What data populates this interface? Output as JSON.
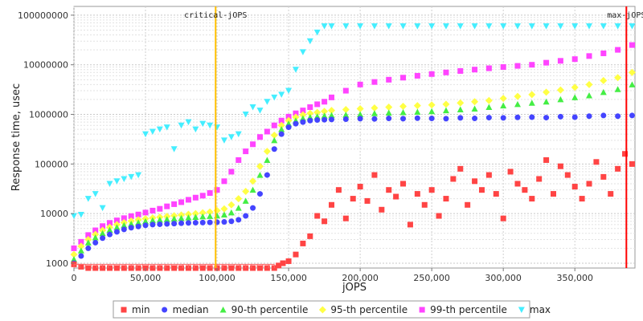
{
  "chart_data": {
    "type": "scatter",
    "title": "",
    "xlabel": "jOPS",
    "ylabel": "Response time, usec",
    "x_scale": "linear",
    "y_scale": "log",
    "xlim": [
      0,
      392000
    ],
    "ylim": [
      800,
      150000000
    ],
    "x_ticks": [
      0,
      50000,
      100000,
      150000,
      200000,
      250000,
      300000,
      350000
    ],
    "x_tick_labels": [
      "0",
      "50,000",
      "100,000",
      "150,000",
      "200,000",
      "250,000",
      "300,000",
      "350,000"
    ],
    "y_ticks": [
      1000,
      10000,
      100000,
      1000000,
      10000000,
      100000000
    ],
    "y_tick_labels": [
      "1000",
      "10000",
      "100000",
      "1000000",
      "10000000",
      "100000000"
    ],
    "grid": true,
    "legend_position": "bottom",
    "markers": [
      {
        "label": "critical-jOPS",
        "x": 99000,
        "color": "#ffbf00"
      },
      {
        "label": "max-jOPS",
        "x": 386000,
        "color": "#ff0000"
      }
    ],
    "series": [
      {
        "name": "min",
        "color": "#ff4444",
        "shape": "square",
        "x": [
          0,
          5000,
          10000,
          15000,
          20000,
          25000,
          30000,
          35000,
          40000,
          45000,
          50000,
          55000,
          60000,
          65000,
          70000,
          75000,
          80000,
          85000,
          90000,
          95000,
          100000,
          105000,
          110000,
          115000,
          120000,
          125000,
          130000,
          135000,
          140000,
          143000,
          146000,
          150000,
          155000,
          160000,
          165000,
          170000,
          175000,
          180000,
          185000,
          190000,
          195000,
          200000,
          205000,
          210000,
          215000,
          220000,
          225000,
          230000,
          235000,
          240000,
          245000,
          250000,
          255000,
          260000,
          265000,
          270000,
          275000,
          280000,
          285000,
          290000,
          295000,
          300000,
          305000,
          310000,
          315000,
          320000,
          325000,
          330000,
          335000,
          340000,
          345000,
          350000,
          355000,
          360000,
          365000,
          370000,
          375000,
          380000,
          385000,
          390000
        ],
        "y": [
          950,
          850,
          800,
          800,
          800,
          800,
          800,
          800,
          800,
          800,
          800,
          800,
          800,
          800,
          800,
          800,
          800,
          800,
          800,
          800,
          800,
          800,
          800,
          800,
          800,
          800,
          800,
          800,
          800,
          900,
          1000,
          1100,
          1500,
          2500,
          3500,
          9000,
          7000,
          15000,
          30000,
          8000,
          20000,
          35000,
          18000,
          60000,
          12000,
          30000,
          22000,
          40000,
          6000,
          25000,
          15000,
          30000,
          9000,
          20000,
          50000,
          80000,
          15000,
          45000,
          30000,
          60000,
          25000,
          8000,
          70000,
          40000,
          30000,
          20000,
          50000,
          120000,
          25000,
          90000,
          60000,
          35000,
          20000,
          40000,
          110000,
          55000,
          25000,
          80000,
          160000,
          100000
        ]
      },
      {
        "name": "median",
        "color": "#4444ff",
        "shape": "circle",
        "x": [
          0,
          5000,
          10000,
          15000,
          20000,
          25000,
          30000,
          35000,
          40000,
          45000,
          50000,
          55000,
          60000,
          65000,
          70000,
          75000,
          80000,
          85000,
          90000,
          95000,
          100000,
          105000,
          110000,
          115000,
          120000,
          125000,
          130000,
          135000,
          140000,
          145000,
          150000,
          155000,
          160000,
          165000,
          170000,
          175000,
          180000,
          190000,
          200000,
          210000,
          220000,
          230000,
          240000,
          250000,
          260000,
          270000,
          280000,
          290000,
          300000,
          310000,
          320000,
          330000,
          340000,
          350000,
          360000,
          370000,
          380000,
          390000
        ],
        "y": [
          1000,
          1400,
          2000,
          2600,
          3200,
          3800,
          4300,
          4800,
          5200,
          5500,
          5800,
          6000,
          6100,
          6200,
          6300,
          6400,
          6500,
          6550,
          6600,
          6650,
          6700,
          6800,
          7000,
          7500,
          9000,
          13000,
          25000,
          60000,
          200000,
          400000,
          550000,
          650000,
          700000,
          750000,
          770000,
          780000,
          790000,
          800000,
          820000,
          810000,
          830000,
          820000,
          840000,
          830000,
          820000,
          850000,
          830000,
          860000,
          850000,
          870000,
          880000,
          860000,
          900000,
          880000,
          920000,
          950000,
          920000,
          950000
        ]
      },
      {
        "name": "90-th percentile",
        "color": "#44ee44",
        "shape": "triangle-up",
        "x": [
          0,
          5000,
          10000,
          15000,
          20000,
          25000,
          30000,
          35000,
          40000,
          45000,
          50000,
          55000,
          60000,
          65000,
          70000,
          75000,
          80000,
          85000,
          90000,
          95000,
          100000,
          105000,
          110000,
          115000,
          120000,
          125000,
          130000,
          135000,
          140000,
          145000,
          150000,
          155000,
          160000,
          165000,
          170000,
          175000,
          180000,
          190000,
          200000,
          210000,
          220000,
          230000,
          240000,
          250000,
          260000,
          270000,
          280000,
          290000,
          300000,
          310000,
          320000,
          330000,
          340000,
          350000,
          360000,
          370000,
          380000,
          390000
        ],
        "y": [
          1200,
          1800,
          2600,
          3300,
          4000,
          4700,
          5300,
          5800,
          6200,
          6600,
          7000,
          7300,
          7500,
          7700,
          7900,
          8100,
          8300,
          8500,
          8700,
          8900,
          9100,
          9500,
          10500,
          13000,
          18000,
          30000,
          60000,
          120000,
          300000,
          500000,
          650000,
          750000,
          830000,
          880000,
          910000,
          940000,
          960000,
          980000,
          1000000,
          1050000,
          1080000,
          1100000,
          1120000,
          1150000,
          1200000,
          1250000,
          1300000,
          1400000,
          1500000,
          1600000,
          1700000,
          1800000,
          2000000,
          2200000,
          2400000,
          2800000,
          3200000,
          4000000
        ]
      },
      {
        "name": "95-th percentile",
        "color": "#ffff44",
        "shape": "diamond",
        "x": [
          0,
          5000,
          10000,
          15000,
          20000,
          25000,
          30000,
          35000,
          40000,
          45000,
          50000,
          55000,
          60000,
          65000,
          70000,
          75000,
          80000,
          85000,
          90000,
          95000,
          100000,
          105000,
          110000,
          115000,
          120000,
          125000,
          130000,
          135000,
          140000,
          145000,
          150000,
          155000,
          160000,
          165000,
          170000,
          175000,
          180000,
          190000,
          200000,
          210000,
          220000,
          230000,
          240000,
          250000,
          260000,
          270000,
          280000,
          290000,
          300000,
          310000,
          320000,
          330000,
          340000,
          350000,
          360000,
          370000,
          380000,
          390000
        ],
        "y": [
          1500,
          2200,
          3000,
          3800,
          4600,
          5300,
          6000,
          6600,
          7100,
          7500,
          7900,
          8200,
          8500,
          8800,
          9100,
          9400,
          9700,
          10000,
          10400,
          10800,
          11500,
          12500,
          15000,
          20000,
          28000,
          45000,
          90000,
          180000,
          380000,
          600000,
          750000,
          880000,
          980000,
          1050000,
          1100000,
          1150000,
          1200000,
          1250000,
          1300000,
          1350000,
          1400000,
          1450000,
          1500000,
          1550000,
          1600000,
          1700000,
          1800000,
          1900000,
          2100000,
          2300000,
          2500000,
          2800000,
          3100000,
          3500000,
          4000000,
          4800000,
          5500000,
          7000000
        ]
      },
      {
        "name": "99-th percentile",
        "color": "#ff44ff",
        "shape": "square",
        "x": [
          0,
          5000,
          10000,
          15000,
          20000,
          25000,
          30000,
          35000,
          40000,
          45000,
          50000,
          55000,
          60000,
          65000,
          70000,
          75000,
          80000,
          85000,
          90000,
          95000,
          100000,
          105000,
          110000,
          115000,
          120000,
          125000,
          130000,
          135000,
          140000,
          145000,
          150000,
          155000,
          160000,
          165000,
          170000,
          175000,
          180000,
          190000,
          200000,
          210000,
          220000,
          230000,
          240000,
          250000,
          260000,
          270000,
          280000,
          290000,
          300000,
          310000,
          320000,
          330000,
          340000,
          350000,
          360000,
          370000,
          380000,
          390000
        ],
        "y": [
          2000,
          2700,
          3700,
          4600,
          5600,
          6500,
          7300,
          8100,
          8900,
          9600,
          10500,
          11500,
          12500,
          14000,
          15500,
          17000,
          19000,
          21000,
          23000,
          26000,
          30000,
          45000,
          70000,
          120000,
          180000,
          250000,
          350000,
          450000,
          600000,
          750000,
          900000,
          1050000,
          1200000,
          1400000,
          1600000,
          1800000,
          2200000,
          3000000,
          4000000,
          4500000,
          5000000,
          5500000,
          6000000,
          6500000,
          7000000,
          7500000,
          8000000,
          8500000,
          9000000,
          9500000,
          10000000,
          11000000,
          12000000,
          13000000,
          15000000,
          17000000,
          20000000,
          25000000
        ]
      },
      {
        "name": "max",
        "color": "#44eeff",
        "shape": "triangle-down",
        "x": [
          0,
          5000,
          10000,
          15000,
          20000,
          25000,
          30000,
          35000,
          40000,
          45000,
          50000,
          55000,
          60000,
          65000,
          70000,
          75000,
          80000,
          85000,
          90000,
          95000,
          100000,
          105000,
          110000,
          115000,
          120000,
          125000,
          130000,
          135000,
          140000,
          145000,
          150000,
          155000,
          160000,
          165000,
          170000,
          175000,
          180000,
          190000,
          200000,
          210000,
          220000,
          230000,
          240000,
          250000,
          260000,
          270000,
          280000,
          290000,
          300000,
          310000,
          320000,
          330000,
          340000,
          350000,
          360000,
          370000,
          380000,
          390000
        ],
        "y": [
          9000,
          9500,
          20000,
          25000,
          13000,
          40000,
          45000,
          50000,
          55000,
          60000,
          400000,
          450000,
          500000,
          550000,
          200000,
          600000,
          700000,
          500000,
          650000,
          600000,
          550000,
          300000,
          350000,
          400000,
          1000000,
          1400000,
          1200000,
          1800000,
          2200000,
          2500000,
          3000000,
          8000000,
          18000000,
          30000000,
          45000000,
          60000000,
          60000000,
          60000000,
          60000000,
          60000000,
          60000000,
          60000000,
          60000000,
          60000000,
          60000000,
          60000000,
          60000000,
          60000000,
          60000000,
          60000000,
          60000000,
          60000000,
          60000000,
          60000000,
          60000000,
          60000000,
          60000000,
          60000000
        ]
      }
    ]
  }
}
